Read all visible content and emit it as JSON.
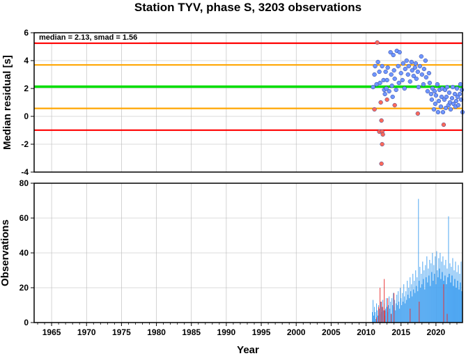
{
  "chart_data": {
    "title": "Station TYV, phase S, 3203 observations",
    "xlabel": "Year",
    "x_ticks": [
      "1965",
      "1970",
      "1975",
      "1980",
      "1985",
      "1990",
      "1995",
      "2000",
      "2005",
      "2010",
      "2015",
      "2020"
    ],
    "xlim": [
      1962.5,
      2023.8
    ],
    "grid": true,
    "panels": [
      {
        "type": "scatter",
        "ylabel": "Median residual [s]",
        "ylim": [
          -4,
          6
        ],
        "y_ticks": [
          "-4",
          "-2",
          "0",
          "2",
          "4",
          "6"
        ],
        "annotation": "median = 2.13, smad = 1.56",
        "reference_lines": [
          {
            "name": "median",
            "y": 2.13,
            "color": "#00dd00"
          },
          {
            "name": "median + 1 smad",
            "y": 3.69,
            "color": "#ffa500"
          },
          {
            "name": "median - 1 smad",
            "y": 0.57,
            "color": "#ffa500"
          },
          {
            "name": "median + 2 smad",
            "y": 5.25,
            "color": "#ff0000"
          },
          {
            "name": "median - 2 smad",
            "y": -0.99,
            "color": "#ff0000"
          }
        ],
        "colors": {
          "inlier": "#6f96ff",
          "outlier": "#ff6a5a",
          "edge": "#2c3e91"
        },
        "series": [
          {
            "name": "outliers",
            "points": [
              [
                2011.6,
                5.3
              ],
              [
                2012.1,
                1.0
              ],
              [
                2012.2,
                -0.3
              ],
              [
                2011.9,
                -1.1
              ],
              [
                2012.3,
                -1.1
              ],
              [
                2012.4,
                -1.3
              ],
              [
                2012.3,
                -2.0
              ],
              [
                2012.2,
                -3.4
              ],
              [
                2011.2,
                0.5
              ],
              [
                2014.1,
                0.8
              ],
              [
                2017.4,
                0.2
              ],
              [
                2021.1,
                -0.6
              ],
              [
                2013.0,
                1.2
              ]
            ]
          },
          {
            "name": "inliers",
            "points": [
              [
                2011.0,
                2.1
              ],
              [
                2011.2,
                3.0
              ],
              [
                2011.3,
                3.6
              ],
              [
                2011.5,
                2.3
              ],
              [
                2011.7,
                3.9
              ],
              [
                2011.9,
                3.2
              ],
              [
                2012.0,
                2.4
              ],
              [
                2012.3,
                3.6
              ],
              [
                2012.5,
                2.6
              ],
              [
                2012.6,
                1.9
              ],
              [
                2012.7,
                1.6
              ],
              [
                2012.8,
                3.2
              ],
              [
                2012.9,
                2.0
              ],
              [
                2013.0,
                2.6
              ],
              [
                2013.1,
                3.5
              ],
              [
                2013.3,
                1.8
              ],
              [
                2013.5,
                4.6
              ],
              [
                2013.6,
                3.0
              ],
              [
                2013.7,
                2.2
              ],
              [
                2013.8,
                1.4
              ],
              [
                2013.9,
                4.4
              ],
              [
                2014.0,
                3.3
              ],
              [
                2014.1,
                2.7
              ],
              [
                2014.3,
                1.9
              ],
              [
                2014.4,
                4.7
              ],
              [
                2014.6,
                3.6
              ],
              [
                2014.7,
                2.4
              ],
              [
                2014.8,
                4.6
              ],
              [
                2015.0,
                3.1
              ],
              [
                2015.2,
                2.6
              ],
              [
                2015.3,
                3.8
              ],
              [
                2015.5,
                2.0
              ],
              [
                2015.6,
                3.4
              ],
              [
                2015.8,
                4.0
              ],
              [
                2016.0,
                3.0
              ],
              [
                2016.1,
                3.6
              ],
              [
                2016.3,
                2.5
              ],
              [
                2016.5,
                3.9
              ],
              [
                2016.6,
                3.3
              ],
              [
                2016.8,
                2.9
              ],
              [
                2017.0,
                3.5
              ],
              [
                2017.1,
                3.8
              ],
              [
                2017.2,
                2.7
              ],
              [
                2017.4,
                3.2
              ],
              [
                2017.5,
                2.1
              ],
              [
                2017.7,
                3.6
              ],
              [
                2017.9,
                4.3
              ],
              [
                2018.0,
                3.0
              ],
              [
                2018.2,
                2.3
              ],
              [
                2018.3,
                3.4
              ],
              [
                2018.5,
                4.0
              ],
              [
                2018.6,
                2.8
              ],
              [
                2018.8,
                1.8
              ],
              [
                2019.0,
                3.1
              ],
              [
                2019.1,
                2.4
              ],
              [
                2019.3,
                1.6
              ],
              [
                2019.4,
                1.2
              ],
              [
                2019.5,
                2.0
              ],
              [
                2019.7,
                0.5
              ],
              [
                2019.8,
                1.8
              ],
              [
                2019.9,
                0.9
              ],
              [
                2020.0,
                1.5
              ],
              [
                2020.2,
                2.3
              ],
              [
                2020.3,
                0.3
              ],
              [
                2020.4,
                1.1
              ],
              [
                2020.5,
                1.9
              ],
              [
                2020.7,
                0.7
              ],
              [
                2020.8,
                1.4
              ],
              [
                2020.9,
                2.0
              ],
              [
                2021.0,
                0.3
              ],
              [
                2021.2,
                1.2
              ],
              [
                2021.3,
                1.9
              ],
              [
                2021.4,
                0.6
              ],
              [
                2021.5,
                1.4
              ],
              [
                2021.6,
                2.1
              ],
              [
                2021.8,
                0.8
              ],
              [
                2021.9,
                1.7
              ],
              [
                2022.0,
                1.0
              ],
              [
                2022.1,
                0.5
              ],
              [
                2022.3,
                1.3
              ],
              [
                2022.4,
                2.1
              ],
              [
                2022.5,
                0.9
              ],
              [
                2022.7,
                1.6
              ],
              [
                2022.8,
                0.7
              ],
              [
                2022.9,
                1.1
              ],
              [
                2023.0,
                2.0
              ],
              [
                2023.1,
                1.4
              ],
              [
                2023.2,
                0.8
              ],
              [
                2023.4,
                1.6
              ],
              [
                2023.5,
                2.3
              ],
              [
                2023.6,
                1.2
              ],
              [
                2023.7,
                1.9
              ],
              [
                2023.8,
                0.3
              ]
            ]
          }
        ]
      },
      {
        "type": "bar",
        "ylabel": "Observations",
        "ylim": [
          0,
          80
        ],
        "y_ticks": [
          "0",
          "20",
          "40",
          "60",
          "80"
        ],
        "colors": {
          "normal": "#3d9ef0",
          "outlier": "#e8282a"
        },
        "bars": [
          [
            2010.9,
            6
          ],
          [
            2011.0,
            13
          ],
          [
            2011.1,
            4
          ],
          [
            2011.2,
            9
          ],
          [
            2011.3,
            6
          ],
          [
            2011.4,
            2
          ],
          [
            2011.5,
            11
          ],
          [
            2011.6,
            7
          ],
          [
            2011.7,
            4
          ],
          [
            2011.8,
            10
          ],
          [
            2011.9,
            8
          ],
          [
            2012.0,
            5
          ],
          [
            2012.1,
            12
          ],
          [
            2012.2,
            6
          ],
          [
            2012.3,
            9
          ],
          [
            2012.4,
            13
          ],
          [
            2012.5,
            7
          ],
          [
            2012.6,
            11
          ],
          [
            2012.7,
            4
          ],
          [
            2012.8,
            8
          ],
          [
            2012.9,
            14
          ],
          [
            2013.0,
            9
          ],
          [
            2013.1,
            6
          ],
          [
            2013.2,
            10
          ],
          [
            2013.3,
            15
          ],
          [
            2013.4,
            8
          ],
          [
            2013.5,
            12
          ],
          [
            2013.6,
            5
          ],
          [
            2013.7,
            14
          ],
          [
            2013.8,
            10
          ],
          [
            2013.9,
            17
          ],
          [
            2014.0,
            9
          ],
          [
            2014.1,
            13
          ],
          [
            2014.2,
            7
          ],
          [
            2014.3,
            11
          ],
          [
            2014.4,
            16
          ],
          [
            2014.5,
            10
          ],
          [
            2014.6,
            18
          ],
          [
            2014.7,
            12
          ],
          [
            2014.8,
            8
          ],
          [
            2014.9,
            20
          ],
          [
            2015.0,
            14
          ],
          [
            2015.1,
            10
          ],
          [
            2015.2,
            17
          ],
          [
            2015.3,
            12
          ],
          [
            2015.4,
            22
          ],
          [
            2015.5,
            15
          ],
          [
            2015.6,
            11
          ],
          [
            2015.7,
            18
          ],
          [
            2015.8,
            13
          ],
          [
            2015.9,
            24
          ],
          [
            2016.0,
            16
          ],
          [
            2016.1,
            20
          ],
          [
            2016.2,
            14
          ],
          [
            2016.3,
            26
          ],
          [
            2016.4,
            18
          ],
          [
            2016.5,
            22
          ],
          [
            2016.6,
            15
          ],
          [
            2016.7,
            28
          ],
          [
            2016.8,
            19
          ],
          [
            2016.9,
            24
          ],
          [
            2017.0,
            17
          ],
          [
            2017.1,
            30
          ],
          [
            2017.2,
            21
          ],
          [
            2017.3,
            26
          ],
          [
            2017.4,
            18
          ],
          [
            2017.5,
            71
          ],
          [
            2017.6,
            24
          ],
          [
            2017.7,
            32
          ],
          [
            2017.8,
            20
          ],
          [
            2017.9,
            28
          ],
          [
            2018.0,
            22
          ],
          [
            2018.1,
            35
          ],
          [
            2018.2,
            25
          ],
          [
            2018.3,
            30
          ],
          [
            2018.4,
            19
          ],
          [
            2018.5,
            33
          ],
          [
            2018.6,
            26
          ],
          [
            2018.7,
            38
          ],
          [
            2018.8,
            23
          ],
          [
            2018.9,
            31
          ],
          [
            2019.0,
            27
          ],
          [
            2019.1,
            36
          ],
          [
            2019.2,
            21
          ],
          [
            2019.3,
            34
          ],
          [
            2019.4,
            29
          ],
          [
            2019.5,
            40
          ],
          [
            2019.6,
            24
          ],
          [
            2019.7,
            33
          ],
          [
            2019.8,
            28
          ],
          [
            2019.9,
            38
          ],
          [
            2020.0,
            22
          ],
          [
            2020.1,
            41
          ],
          [
            2020.2,
            30
          ],
          [
            2020.3,
            26
          ],
          [
            2020.4,
            37
          ],
          [
            2020.5,
            31
          ],
          [
            2020.6,
            40
          ],
          [
            2020.7,
            25
          ],
          [
            2020.8,
            35
          ],
          [
            2020.9,
            29
          ],
          [
            2021.0,
            38
          ],
          [
            2021.1,
            24
          ],
          [
            2021.2,
            33
          ],
          [
            2021.3,
            27
          ],
          [
            2021.4,
            36
          ],
          [
            2021.5,
            22
          ],
          [
            2021.6,
            31
          ],
          [
            2021.7,
            26
          ],
          [
            2021.8,
            61
          ],
          [
            2021.9,
            28
          ],
          [
            2022.0,
            34
          ],
          [
            2022.1,
            23
          ],
          [
            2022.2,
            32
          ],
          [
            2022.3,
            27
          ],
          [
            2022.4,
            37
          ],
          [
            2022.5,
            21
          ],
          [
            2022.6,
            30
          ],
          [
            2022.7,
            25
          ],
          [
            2022.8,
            35
          ],
          [
            2022.9,
            20
          ],
          [
            2023.0,
            29
          ],
          [
            2023.1,
            24
          ],
          [
            2023.2,
            33
          ],
          [
            2023.3,
            19
          ],
          [
            2023.4,
            28
          ],
          [
            2023.5,
            23
          ],
          [
            2023.6,
            35
          ],
          [
            2023.7,
            18
          ],
          [
            2023.8,
            27
          ]
        ],
        "outlier_bars": [
          [
            2011.5,
            3
          ],
          [
            2011.8,
            9
          ],
          [
            2012.0,
            20
          ],
          [
            2012.2,
            12
          ],
          [
            2012.4,
            9
          ],
          [
            2012.6,
            25
          ],
          [
            2012.7,
            7
          ],
          [
            2013.1,
            14
          ],
          [
            2013.6,
            5
          ],
          [
            2014.0,
            17
          ],
          [
            2016.3,
            8
          ],
          [
            2017.6,
            12
          ],
          [
            2021.1,
            22
          ],
          [
            2021.6,
            5
          ]
        ]
      }
    ]
  }
}
